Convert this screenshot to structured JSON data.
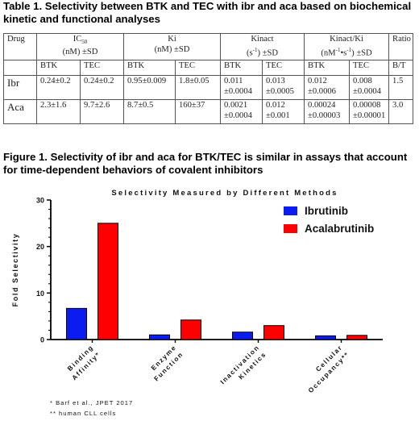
{
  "table_title": "Table 1. Selectivity between BTK and TEC with ibr and aca based on biochemical kinetic and functional analyses",
  "table": {
    "drug_header": "Drug",
    "groups": [
      {
        "name": "IC50",
        "name_main": "IC",
        "name_sub": "50",
        "unit": "(nM) ±SD"
      },
      {
        "name": "Ki",
        "unit": "(nM) ±SD"
      },
      {
        "name": "Kinact",
        "unit_main": "(s",
        "unit_sup": "-1",
        "unit_tail": ") ±SD"
      },
      {
        "name": "Kinact/Ki",
        "unit_a": "(nM",
        "unit_sup1": "-1",
        "unit_b": "•s",
        "unit_sup2": "-1",
        "unit_c": ") ±SD"
      }
    ],
    "ratio_header": "Ratio",
    "sub": {
      "btk": "BTK",
      "tec": "TEC",
      "ratio": "B/T"
    },
    "rows": [
      {
        "drug": "Ibr",
        "ic50_btk": "0.24±0.2",
        "ic50_tec": "0.24±0.2",
        "ki_btk": "0.95±0.009",
        "ki_tec": "1.8±0.05",
        "kinact_btk_l1": "0.011",
        "kinact_btk_l2": "±0.0004",
        "kinact_tec_l1": "0.013",
        "kinact_tec_l2": "±0.0005",
        "kk_btk_l1": "0.012",
        "kk_btk_l2": "±0.0006",
        "kk_tec_l1": "0.008",
        "kk_tec_l2": "±0.0004",
        "ratio": "1.5"
      },
      {
        "drug": "Aca",
        "ic50_btk": "2.3±1.6",
        "ic50_tec": "9.7±2.6",
        "ki_btk": "8.7±0.5",
        "ki_tec": "160±37",
        "kinact_btk_l1": "0.0021",
        "kinact_btk_l2": "±0.0004",
        "kinact_tec_l1": "0.012",
        "kinact_tec_l2": "±0.001",
        "kk_btk_l1": "0.00024",
        "kk_btk_l2": "±0.00003",
        "kk_tec_l1": "0.00008",
        "kk_tec_l2": "±0.00001",
        "ratio": "3.0"
      }
    ]
  },
  "figure_title": "Figure 1. Selectivity of ibr and aca for BTK/TEC is similar in assays that account for time-dependent behaviors of covalent inhibitors",
  "chart_data": {
    "type": "bar",
    "title": "Selectivity Measured by Different Methods",
    "ylabel": "Fold Selectivity",
    "xlabel": "",
    "ylim": [
      0,
      30
    ],
    "yticks": [
      0,
      10,
      20,
      30
    ],
    "categories": [
      "Binding Affinity*",
      "Enzyme Function",
      "Inactivation Kinetics",
      "Cellular Occupancy**"
    ],
    "series": [
      {
        "name": "Ibrutinib",
        "color": "#0a1cf2",
        "values": [
          6.7,
          1.0,
          1.6,
          0.8
        ]
      },
      {
        "name": "Acalabrutinib",
        "color": "#ff0000",
        "values": [
          25.0,
          4.2,
          3.0,
          0.9
        ]
      }
    ],
    "legend": "top-right",
    "grid": false
  },
  "footnotes": [
    "* Barf et al., JPET 2017",
    "** human CLL cells"
  ]
}
